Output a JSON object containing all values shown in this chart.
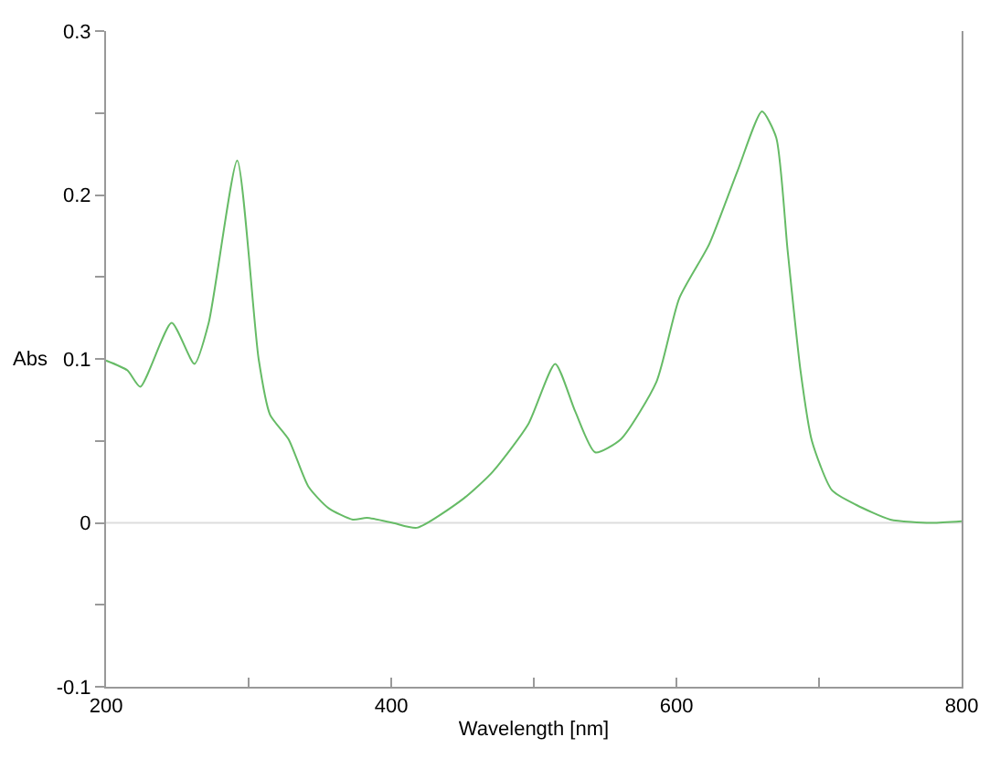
{
  "chart_data": {
    "type": "line",
    "xlabel": "Wavelength [nm]",
    "ylabel": "Abs",
    "x": [
      200,
      215,
      224,
      246,
      262,
      272,
      292,
      307,
      315,
      328,
      342,
      356,
      373,
      383,
      401,
      418,
      451,
      471,
      496,
      515,
      529,
      543,
      561,
      586,
      602,
      623,
      643,
      660,
      670,
      678,
      687,
      695,
      709,
      726,
      750,
      779,
      800
    ],
    "series": [
      {
        "color": "#66bb66",
        "values": [
          0.099,
          0.093,
          0.083,
          0.122,
          0.097,
          0.122,
          0.221,
          0.1,
          0.066,
          0.051,
          0.022,
          0.009,
          0.002,
          0.003,
          0.0,
          -0.003,
          0.015,
          0.031,
          0.06,
          0.097,
          0.068,
          0.043,
          0.051,
          0.086,
          0.137,
          0.17,
          0.215,
          0.251,
          0.235,
          0.166,
          0.093,
          0.05,
          0.02,
          0.011,
          0.002,
          0.0,
          0.001
        ]
      }
    ],
    "xlim": [
      200,
      800
    ],
    "ylim": [
      -0.1,
      0.3
    ],
    "xticks": [
      200,
      {
        "value": 300,
        "label": null
      },
      400,
      {
        "value": 500,
        "label": null
      },
      600,
      {
        "value": 700,
        "label": null
      },
      800
    ],
    "yticks": [
      -0.1,
      {
        "value": -0.05,
        "label": null
      },
      0,
      {
        "value": 0.05,
        "label": null
      },
      0.1,
      {
        "value": 0.15,
        "label": null
      },
      0.2,
      {
        "value": 0.25,
        "label": null
      },
      0.3
    ],
    "ref_lines": [
      {
        "axis": "y",
        "value": 0,
        "color": "#dddddd"
      }
    ],
    "grid": false,
    "marker": "none",
    "line_style": "solid"
  }
}
